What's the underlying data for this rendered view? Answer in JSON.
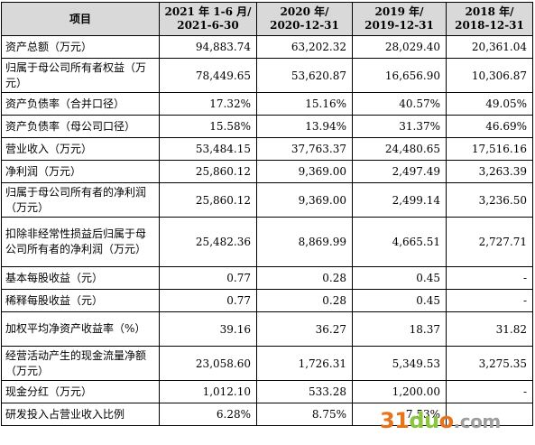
{
  "table": {
    "headers": [
      "项目",
      "2021 年 1-6 月/\n2021-6-30",
      "2020 年/\n2020-12-31",
      "2019 年/\n2019-12-31",
      "2018 年/\n2018-12-31"
    ],
    "rows": [
      {
        "label": "资产总额（万元）",
        "values": [
          "94,883.74",
          "63,202.32",
          "28,029.40",
          "20,361.04"
        ]
      },
      {
        "label": "归属于母公司所有者权益（万元）",
        "values": [
          "78,449.65",
          "53,620.87",
          "16,656.90",
          "10,306.87"
        ]
      },
      {
        "label": "资产负债率（合并口径）",
        "values": [
          "17.32%",
          "15.16%",
          "40.57%",
          "49.05%"
        ]
      },
      {
        "label": "资产负债率（母公司口径）",
        "values": [
          "15.58%",
          "13.94%",
          "31.37%",
          "46.69%"
        ]
      },
      {
        "label": "营业收入（万元）",
        "values": [
          "53,484.15",
          "37,763.37",
          "24,480.65",
          "17,516.16"
        ]
      },
      {
        "label": "净利润（万元）",
        "values": [
          "25,860.12",
          "9,369.00",
          "2,497.49",
          "3,263.39"
        ]
      },
      {
        "label": "归属于母公司所有者的净利润（万元）",
        "values": [
          "25,860.12",
          "9,369.00",
          "2,499.14",
          "3,236.50"
        ]
      },
      {
        "label": "扣除非经常性损益后归属于母公司所有者的净利润（万元）",
        "values": [
          "25,482.36",
          "8,869.99",
          "4,665.51",
          "2,727.71"
        ]
      },
      {
        "label": "基本每股收益（元）",
        "values": [
          "0.77",
          "0.28",
          "0.45",
          "-"
        ]
      },
      {
        "label": "稀释每股收益（元）",
        "values": [
          "0.77",
          "0.28",
          "0.45",
          "-"
        ]
      },
      {
        "label": "加权平均净资产收益率（%）",
        "values": [
          "39.16",
          "36.27",
          "18.37",
          "31.82"
        ]
      },
      {
        "label": "经营活动产生的现金流量净额（万元）",
        "values": [
          "23,058.60",
          "1,726.31",
          "5,349.53",
          "3,275.35"
        ]
      },
      {
        "label": "现金分红（万元）",
        "values": [
          "1,012.10",
          "533.28",
          "1,200.00",
          "-"
        ]
      },
      {
        "label": "研发投入占营业收入比例",
        "values": [
          "6.28%",
          "8.75%",
          "7.53%",
          ""
        ]
      }
    ]
  },
  "watermark": {
    "part1": "31",
    "part2": "du",
    "part3": "o",
    "part4": ".com"
  }
}
